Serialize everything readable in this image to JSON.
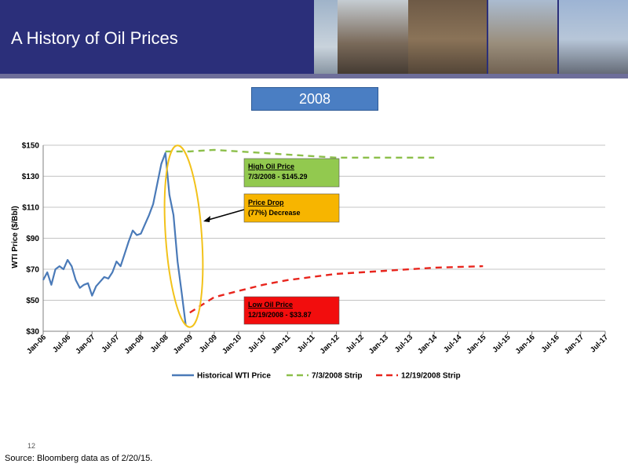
{
  "slide": {
    "title": "A History of Oil Prices",
    "year_label": "2008",
    "page_number": "12",
    "source": "Source: Bloomberg data as of 2/20/15."
  },
  "chart_data": {
    "type": "line",
    "ylabel": "WTI Price ($/Bbl)",
    "ylim": [
      30,
      150
    ],
    "yticks": [
      30,
      50,
      70,
      90,
      110,
      130,
      150
    ],
    "ytick_labels": [
      "$30",
      "$50",
      "$70",
      "$90",
      "$110",
      "$130",
      "$150"
    ],
    "xlim": [
      "2006-01",
      "2017-07"
    ],
    "xtick_labels": [
      "Jan-06",
      "Jul-06",
      "Jan-07",
      "Jul-07",
      "Jan-08",
      "Jul-08",
      "Jan-09",
      "Jul-09",
      "Jan-10",
      "Jul-10",
      "Jan-11",
      "Jul-11",
      "Jan-12",
      "Jul-12",
      "Jan-13",
      "Jul-13",
      "Jan-14",
      "Jul-14",
      "Jan-15",
      "Jul-15",
      "Jan-16",
      "Jul-16",
      "Jan-17",
      "Jul-17"
    ],
    "grid": "horizontal",
    "legend": "bottom",
    "series": [
      {
        "name": "Historical WTI Price",
        "color": "#4a7ab8",
        "style": "solid",
        "x": [
          "2006-01",
          "2006-02",
          "2006-03",
          "2006-04",
          "2006-05",
          "2006-06",
          "2006-07",
          "2006-08",
          "2006-09",
          "2006-10",
          "2006-11",
          "2006-12",
          "2007-01",
          "2007-02",
          "2007-03",
          "2007-04",
          "2007-05",
          "2007-06",
          "2007-07",
          "2007-08",
          "2007-09",
          "2007-10",
          "2007-11",
          "2007-12",
          "2008-01",
          "2008-02",
          "2008-03",
          "2008-04",
          "2008-05",
          "2008-06",
          "2008-07",
          "2008-08",
          "2008-09",
          "2008-10",
          "2008-11",
          "2008-12"
        ],
        "y": [
          63,
          68,
          60,
          70,
          72,
          70,
          76,
          72,
          63,
          58,
          60,
          61,
          53,
          59,
          62,
          65,
          64,
          68,
          75,
          72,
          80,
          88,
          95,
          92,
          93,
          99,
          105,
          112,
          125,
          138,
          145,
          118,
          105,
          75,
          55,
          34
        ]
      },
      {
        "name": "7/3/2008 Strip",
        "color": "#8cbf4a",
        "style": "dashed",
        "x": [
          "2008-07",
          "2009-01",
          "2009-07",
          "2010-01",
          "2011-01",
          "2012-01",
          "2013-01",
          "2014-01"
        ],
        "y": [
          146,
          146,
          147,
          146,
          144,
          142,
          142,
          142
        ]
      },
      {
        "name": "12/19/2008 Strip",
        "color": "#e8251d",
        "style": "dashed",
        "x": [
          "2009-01",
          "2009-04",
          "2009-07",
          "2010-01",
          "2010-07",
          "2011-01",
          "2012-01",
          "2013-01",
          "2014-01",
          "2015-01"
        ],
        "y": [
          42,
          47,
          52,
          56,
          60,
          63,
          67,
          69,
          71,
          72
        ]
      }
    ],
    "annotations": {
      "high": {
        "title": "High Oil Price",
        "text": "7/3/2008 - $145.29",
        "color": "#92c94f"
      },
      "drop": {
        "title": "Price Drop",
        "text": "(77%) Decrease",
        "color": "#f7b500"
      },
      "low": {
        "title": "Low Oil Price",
        "text": "12/19/2008 - $33.87",
        "color": "#f20d0d"
      }
    }
  }
}
